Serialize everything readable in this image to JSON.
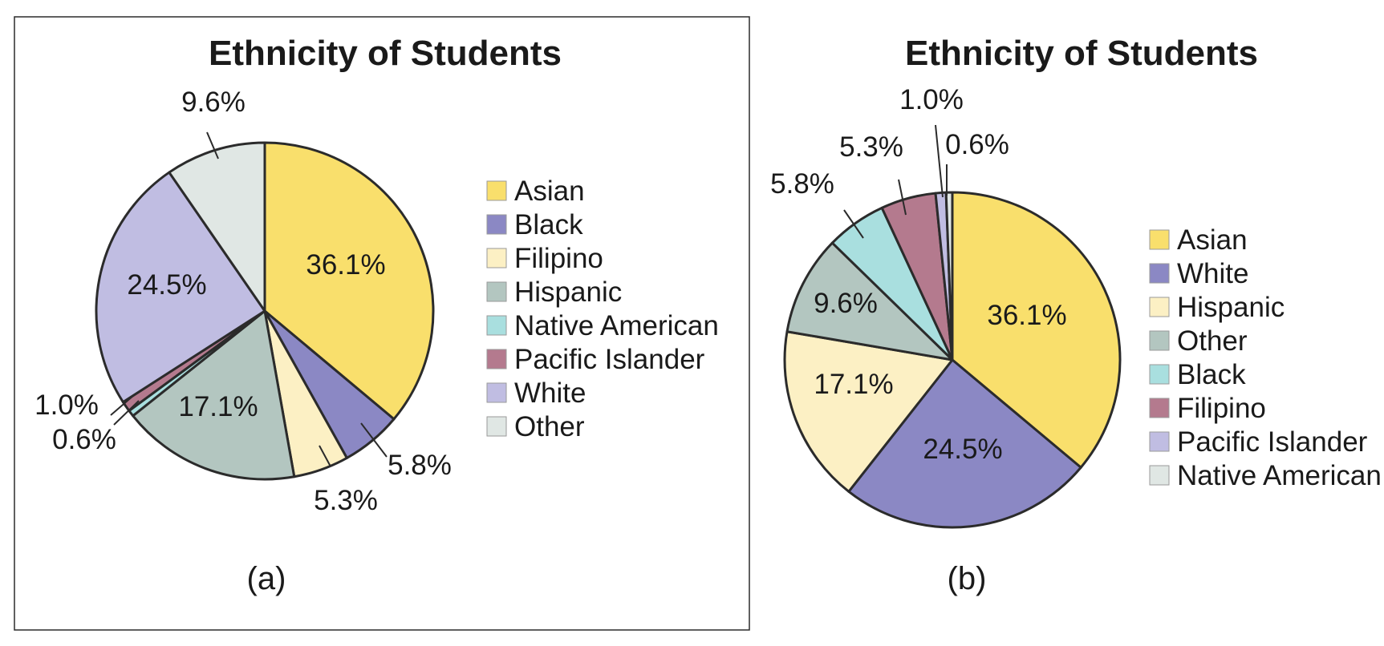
{
  "colors": {
    "yellow": "#f9df6c",
    "purple": "#8b88c4",
    "cream": "#fcf0c4",
    "sage": "#b3c6c0",
    "aqua": "#a9dfdf",
    "mauve": "#b47a8e",
    "lavender": "#c0bde2",
    "ash": "#e0e7e4",
    "outline": "#2b2b2b"
  },
  "chart_data": [
    {
      "type": "pie",
      "title": "Ethnicity of Students",
      "caption": "(a)",
      "legend_position": "right",
      "slices": [
        {
          "label": "Asian",
          "value": 36.1,
          "display": "36.1%",
          "color": "yellow"
        },
        {
          "label": "Black",
          "value": 5.8,
          "display": "5.8%",
          "color": "purple"
        },
        {
          "label": "Filipino",
          "value": 5.3,
          "display": "5.3%",
          "color": "cream"
        },
        {
          "label": "Hispanic",
          "value": 17.1,
          "display": "17.1%",
          "color": "sage"
        },
        {
          "label": "Native American",
          "value": 0.6,
          "display": "0.6%",
          "color": "aqua"
        },
        {
          "label": "Pacific Islander",
          "value": 1.0,
          "display": "1.0%",
          "color": "mauve"
        },
        {
          "label": "White",
          "value": 24.5,
          "display": "24.5%",
          "color": "lavender"
        },
        {
          "label": "Other",
          "value": 9.6,
          "display": "9.6%",
          "color": "ash"
        }
      ]
    },
    {
      "type": "pie",
      "title": "Ethnicity of Students",
      "caption": "(b)",
      "legend_position": "right",
      "slices": [
        {
          "label": "Asian",
          "value": 36.1,
          "display": "36.1%",
          "color": "yellow"
        },
        {
          "label": "White",
          "value": 24.5,
          "display": "24.5%",
          "color": "purple"
        },
        {
          "label": "Hispanic",
          "value": 17.1,
          "display": "17.1%",
          "color": "cream"
        },
        {
          "label": "Other",
          "value": 9.6,
          "display": "9.6%",
          "color": "sage"
        },
        {
          "label": "Black",
          "value": 5.8,
          "display": "5.8%",
          "color": "aqua"
        },
        {
          "label": "Filipino",
          "value": 5.3,
          "display": "5.3%",
          "color": "mauve"
        },
        {
          "label": "Pacific Islander",
          "value": 1.0,
          "display": "1.0%",
          "color": "lavender"
        },
        {
          "label": "Native American",
          "value": 0.6,
          "display": "0.6%",
          "color": "ash"
        }
      ]
    }
  ]
}
